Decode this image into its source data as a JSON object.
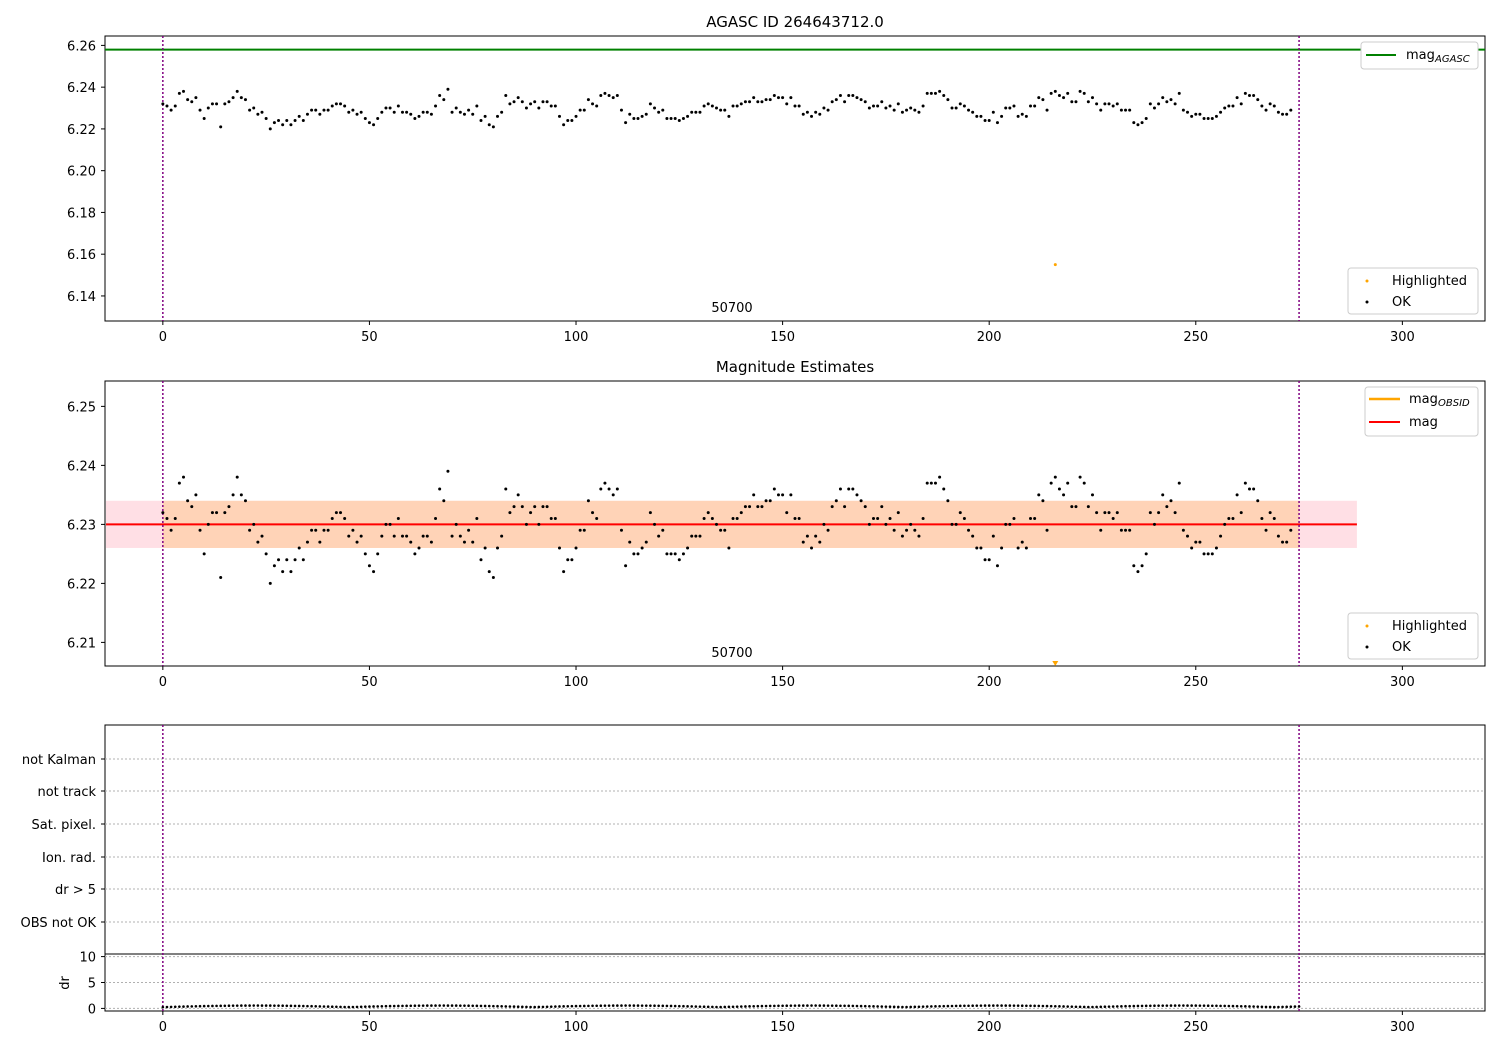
{
  "chart_data": [
    {
      "type": "scatter",
      "title": "AGASC ID 264643712.0",
      "xlabel": "",
      "ylabel": "",
      "xlim": [
        -14,
        320
      ],
      "ylim": [
        6.128,
        6.2645
      ],
      "x_ticks": [
        "0",
        "50",
        "100",
        "150",
        "200",
        "250",
        "300"
      ],
      "y_ticks": [
        "6.14",
        "6.16",
        "6.18",
        "6.20",
        "6.22",
        "6.24",
        "6.26"
      ],
      "y_tick_values": [
        6.14,
        6.16,
        6.18,
        6.2,
        6.22,
        6.24,
        6.26
      ],
      "x_tick_values": [
        0,
        50,
        100,
        150,
        200,
        250,
        300
      ],
      "obsid_label": "50700",
      "obsid_label_x": 137,
      "obs_boundaries": [
        0,
        275
      ],
      "mag_agasc": 6.258,
      "highlighted": [
        {
          "x": 216,
          "y": 6.155
        }
      ],
      "legend_lines": [
        {
          "label": "mag",
          "subscript": "AGASC",
          "color": "#008000"
        }
      ],
      "legend_points": [
        {
          "label": "Highlighted",
          "color": "#ffa500"
        },
        {
          "label": "OK",
          "color": "#000000"
        }
      ],
      "legend_lines_position": "top-right",
      "legend_points_position": "bottom-right",
      "grid": false,
      "series": [
        {
          "name": "OK",
          "color": "#000000",
          "x_start": 0,
          "values": [
            6.232,
            6.231,
            6.229,
            6.231,
            6.237,
            6.238,
            6.234,
            6.233,
            6.235,
            6.229,
            6.225,
            6.23,
            6.232,
            6.232,
            6.221,
            6.232,
            6.233,
            6.235,
            6.238,
            6.235,
            6.234,
            6.229,
            6.23,
            6.227,
            6.228,
            6.225,
            6.22,
            6.223,
            6.224,
            6.222,
            6.224,
            6.222,
            6.224,
            6.226,
            6.224,
            6.227,
            6.229,
            6.229,
            6.227,
            6.229,
            6.229,
            6.231,
            6.232,
            6.232,
            6.231,
            6.228,
            6.229,
            6.227,
            6.228,
            6.225,
            6.223,
            6.222,
            6.225,
            6.228,
            6.23,
            6.23,
            6.228,
            6.231,
            6.228,
            6.228,
            6.227,
            6.225,
            6.226,
            6.228,
            6.228,
            6.227,
            6.231,
            6.236,
            6.234,
            6.239,
            6.228,
            6.23,
            6.228,
            6.227,
            6.229,
            6.227,
            6.231,
            6.224,
            6.226,
            6.222,
            6.221,
            6.226,
            6.228,
            6.236,
            6.232,
            6.233,
            6.235,
            6.233,
            6.23,
            6.232,
            6.233,
            6.23,
            6.233,
            6.233,
            6.231,
            6.231,
            6.226,
            6.222,
            6.224,
            6.224,
            6.226,
            6.229,
            6.229,
            6.234,
            6.232,
            6.231,
            6.236,
            6.237,
            6.236,
            6.235,
            6.236,
            6.229,
            6.223,
            6.227,
            6.225,
            6.225,
            6.226,
            6.227,
            6.232,
            6.23,
            6.228,
            6.229,
            6.225,
            6.225,
            6.225,
            6.224,
            6.225,
            6.226,
            6.228,
            6.228,
            6.228,
            6.231,
            6.232,
            6.231,
            6.23,
            6.229,
            6.229,
            6.226,
            6.231,
            6.231,
            6.232,
            6.233,
            6.233,
            6.235,
            6.233,
            6.233,
            6.234,
            6.234,
            6.236,
            6.235,
            6.235,
            6.232,
            6.235,
            6.231,
            6.231,
            6.227,
            6.228,
            6.226,
            6.228,
            6.227,
            6.23,
            6.229,
            6.233,
            6.234,
            6.236,
            6.233,
            6.236,
            6.236,
            6.235,
            6.234,
            6.233,
            6.23,
            6.231,
            6.231,
            6.233,
            6.23,
            6.231,
            6.229,
            6.232,
            6.228,
            6.229,
            6.23,
            6.229,
            6.228,
            6.231,
            6.237,
            6.237,
            6.237,
            6.238,
            6.236,
            6.234,
            6.23,
            6.23,
            6.232,
            6.231,
            6.229,
            6.228,
            6.226,
            6.226,
            6.224,
            6.224,
            6.228,
            6.223,
            6.226,
            6.23,
            6.23,
            6.231,
            6.226,
            6.227,
            6.226,
            6.231,
            6.231,
            6.235,
            6.234,
            6.229,
            6.237,
            6.238,
            6.236,
            6.235,
            6.237,
            6.233,
            6.233,
            6.238,
            6.237,
            6.233,
            6.235,
            6.232,
            6.229,
            6.232,
            6.232,
            6.231,
            6.232,
            6.229,
            6.229,
            6.229,
            6.223,
            6.222,
            6.223,
            6.225,
            6.232,
            6.23,
            6.232,
            6.235,
            6.233,
            6.234,
            6.232,
            6.237,
            6.229,
            6.228,
            6.226,
            6.227,
            6.227,
            6.225,
            6.225,
            6.225,
            6.226,
            6.228,
            6.23,
            6.231,
            6.231,
            6.235,
            6.232,
            6.237,
            6.236,
            6.236,
            6.234,
            6.231,
            6.229,
            6.232,
            6.231,
            6.228,
            6.227,
            6.227,
            6.229
          ]
        }
      ]
    },
    {
      "type": "scatter",
      "title": "Magnitude Estimates",
      "xlabel": "",
      "ylabel": "",
      "xlim": [
        -14,
        320
      ],
      "ylim": [
        6.206,
        6.2543
      ],
      "x_ticks": [
        "0",
        "50",
        "100",
        "150",
        "200",
        "250",
        "300"
      ],
      "y_ticks": [
        "6.21",
        "6.22",
        "6.23",
        "6.24",
        "6.25"
      ],
      "y_tick_values": [
        6.21,
        6.22,
        6.23,
        6.24,
        6.25
      ],
      "x_tick_values": [
        0,
        50,
        100,
        150,
        200,
        250,
        300
      ],
      "obsid_label": "50700",
      "obsid_label_x": 137,
      "obs_boundaries": [
        0,
        275
      ],
      "mag": 6.23,
      "mag_band": [
        6.226,
        6.234
      ],
      "mag_obsid": 6.23,
      "band_x_end": 289,
      "highlighted_below_range": [
        {
          "x": 216
        }
      ],
      "legend_lines": [
        {
          "label": "mag",
          "subscript": "OBSID",
          "color": "#ffa500"
        },
        {
          "label": "mag",
          "subscript": "",
          "color": "#ff0000"
        }
      ],
      "legend_points": [
        {
          "label": "Highlighted",
          "color": "#ffa500"
        },
        {
          "label": "OK",
          "color": "#000000"
        }
      ],
      "legend_lines_position": "top-right",
      "legend_points_position": "bottom-right",
      "grid": false,
      "series": [
        {
          "name": "OK",
          "color": "#000000",
          "same_values_as_panel": 0
        }
      ]
    },
    {
      "type": "scatter",
      "title": "",
      "xlabel": "",
      "ylabel": "dr",
      "xlim": [
        -14,
        320
      ],
      "x_ticks": [
        "0",
        "50",
        "100",
        "150",
        "200",
        "250",
        "300"
      ],
      "x_tick_values": [
        0,
        50,
        100,
        150,
        200,
        250,
        300
      ],
      "flag_rows": [
        "not Kalman",
        "not track",
        "Sat. pixel.",
        "Ion. rad.",
        "dr > 5",
        "OBS not OK"
      ],
      "dr_ylim": [
        -0.5,
        10.5
      ],
      "dr_ticks": [
        "0",
        "5",
        "10"
      ],
      "dr_tick_values": [
        0,
        5,
        10
      ],
      "obs_boundaries": [
        0,
        275
      ],
      "grid": true,
      "series": [
        {
          "name": "dr",
          "color": "#000000",
          "x_start": 0,
          "note_values": "small, near 0.2-0.6"
        }
      ]
    }
  ]
}
